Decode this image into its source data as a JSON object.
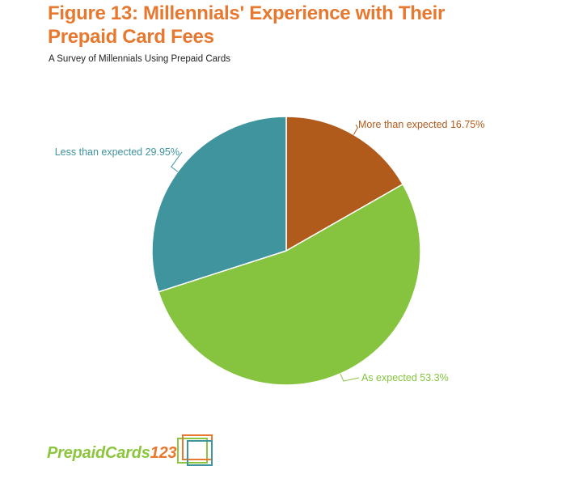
{
  "title": "Figure 13: Millennials' Experience with Their Prepaid Card Fees",
  "subtitle": "A Survey of Millennials Using Prepaid Cards",
  "chart_data": {
    "type": "pie",
    "title": "Figure 13: Millennials' Experience with Their Prepaid Card Fees",
    "subtitle": "A Survey of Millennials Using Prepaid Cards",
    "slices": [
      {
        "label": "More than expected",
        "value": 16.75,
        "display": "More than expected 16.75%",
        "color": "#b05b1b"
      },
      {
        "label": "As expected",
        "value": 53.3,
        "display": "As expected 53.3%",
        "color": "#86c440"
      },
      {
        "label": "Less than expected",
        "value": 29.95,
        "display": "Less than expected 29.95%",
        "color": "#3f949e"
      }
    ],
    "start_angle": "12 o'clock",
    "direction": "clockwise"
  },
  "logo": {
    "part1": "Prepaid",
    "part2": "Cards",
    "part3": "123",
    "colors": {
      "green": "#8cc63f",
      "orange": "#e6782f",
      "teal": "#3f949e"
    }
  }
}
